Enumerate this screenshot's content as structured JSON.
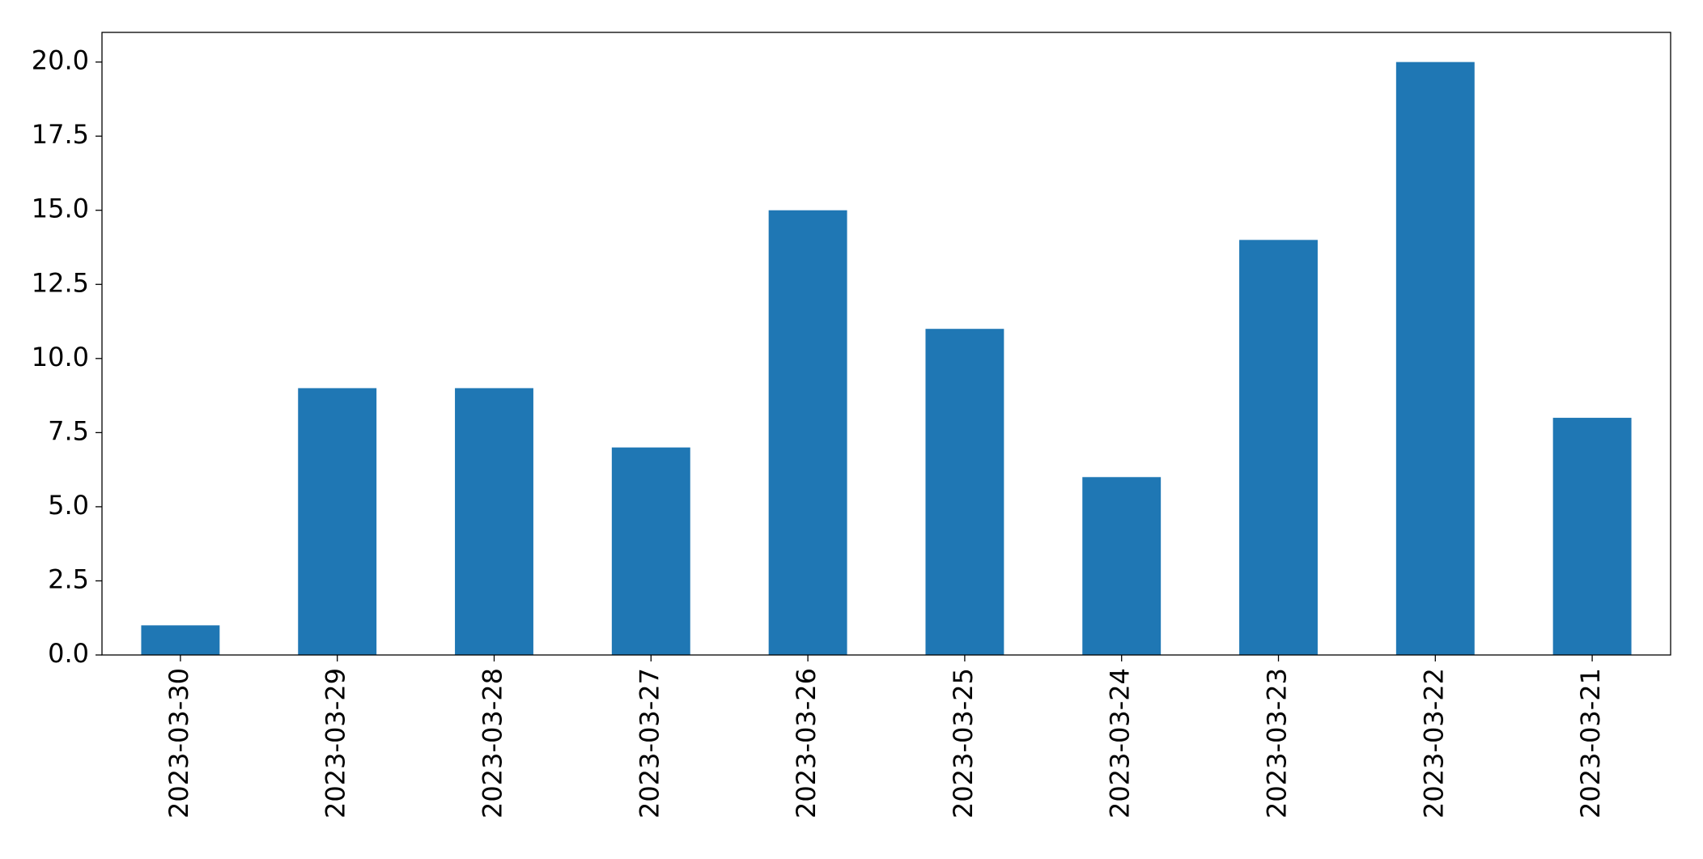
{
  "chart_data": {
    "type": "bar",
    "categories": [
      "2023-03-30",
      "2023-03-29",
      "2023-03-28",
      "2023-03-27",
      "2023-03-26",
      "2023-03-25",
      "2023-03-24",
      "2023-03-23",
      "2023-03-22",
      "2023-03-21"
    ],
    "values": [
      1,
      9,
      9,
      7,
      15,
      11,
      6,
      14,
      20,
      8
    ],
    "color": "#1f77b4",
    "ylim": [
      0,
      21
    ],
    "yticks": [
      {
        "value": 0,
        "label": "0.0"
      },
      2.5,
      {
        "value": 5,
        "label": "5.0"
      },
      7.5,
      {
        "value": 10,
        "label": "10.0"
      },
      12.5,
      {
        "value": 15,
        "label": "15.0"
      },
      17.5,
      {
        "value": 20,
        "label": "20.0"
      }
    ],
    "grid": false
  }
}
